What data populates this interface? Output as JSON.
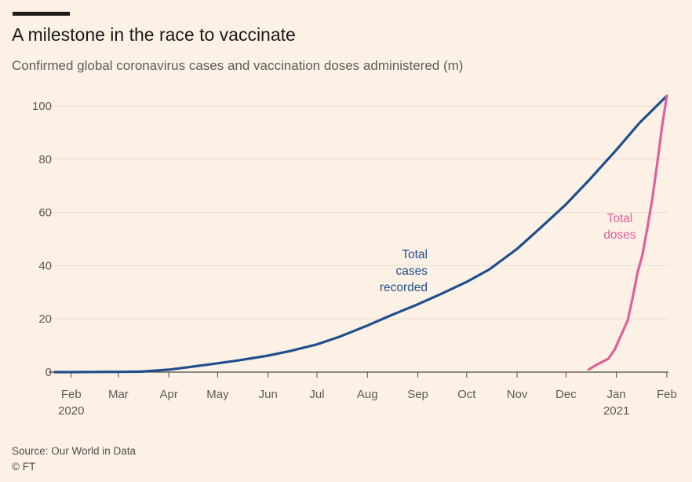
{
  "title": "A milestone in the race to vaccinate",
  "subtitle": "Confirmed global coronavirus cases and vaccination doses administered (m)",
  "source": "Source: Our World in Data",
  "copyright": "© FT",
  "colors": {
    "background": "#fdf1e5",
    "cases": "#1f4f8e",
    "doses": "#e0609b",
    "grid": "#e9dccf"
  },
  "chart_data": {
    "type": "line",
    "title": "A milestone in the race to vaccinate",
    "subtitle": "Confirmed global coronavirus cases and vaccination doses administered (m)",
    "ylim": [
      0,
      100
    ],
    "y_ticks": [
      "0",
      "20",
      "40",
      "60",
      "80",
      "100"
    ],
    "x_ticks": [
      {
        "date": "2020-02-01",
        "label": "Feb",
        "sublabel": "2020"
      },
      {
        "date": "2020-03-01",
        "label": "Mar",
        "sublabel": ""
      },
      {
        "date": "2020-04-01",
        "label": "Apr",
        "sublabel": ""
      },
      {
        "date": "2020-05-01",
        "label": "May",
        "sublabel": ""
      },
      {
        "date": "2020-06-01",
        "label": "Jun",
        "sublabel": ""
      },
      {
        "date": "2020-07-01",
        "label": "Jul",
        "sublabel": ""
      },
      {
        "date": "2020-08-01",
        "label": "Aug",
        "sublabel": ""
      },
      {
        "date": "2020-09-01",
        "label": "Sep",
        "sublabel": ""
      },
      {
        "date": "2020-10-01",
        "label": "Oct",
        "sublabel": ""
      },
      {
        "date": "2020-11-01",
        "label": "Nov",
        "sublabel": ""
      },
      {
        "date": "2020-12-01",
        "label": "Dec",
        "sublabel": ""
      },
      {
        "date": "2021-01-01",
        "label": "Jan",
        "sublabel": "2021"
      },
      {
        "date": "2021-02-01",
        "label": "Feb",
        "sublabel": ""
      }
    ],
    "x_start": "2020-01-22",
    "x_end": "2021-02-02",
    "grid": true,
    "series": [
      {
        "name": "Total cases recorded",
        "label_lines": [
          "Total",
          "cases",
          "recorded"
        ],
        "color": "#1f4f8e",
        "points": [
          [
            "2020-01-22",
            0.0
          ],
          [
            "2020-02-01",
            0.01
          ],
          [
            "2020-02-15",
            0.07
          ],
          [
            "2020-03-01",
            0.09
          ],
          [
            "2020-03-15",
            0.17
          ],
          [
            "2020-04-01",
            0.9
          ],
          [
            "2020-04-15",
            2.0
          ],
          [
            "2020-05-01",
            3.3
          ],
          [
            "2020-05-15",
            4.5
          ],
          [
            "2020-06-01",
            6.2
          ],
          [
            "2020-06-15",
            8.0
          ],
          [
            "2020-07-01",
            10.4
          ],
          [
            "2020-07-15",
            13.3
          ],
          [
            "2020-08-01",
            17.5
          ],
          [
            "2020-08-15",
            21.2
          ],
          [
            "2020-09-01",
            25.5
          ],
          [
            "2020-09-15",
            29.3
          ],
          [
            "2020-10-01",
            33.9
          ],
          [
            "2020-10-15",
            38.6
          ],
          [
            "2020-11-01",
            46.3
          ],
          [
            "2020-11-15",
            54.0
          ],
          [
            "2020-12-01",
            63.0
          ],
          [
            "2020-12-15",
            72.0
          ],
          [
            "2021-01-01",
            83.5
          ],
          [
            "2021-01-15",
            93.5
          ],
          [
            "2021-02-01",
            103.8
          ]
        ]
      },
      {
        "name": "Total doses",
        "label_lines": [
          "Total",
          "doses"
        ],
        "color": "#e0609b",
        "points": [
          [
            "2020-12-15",
            1.0
          ],
          [
            "2020-12-20",
            2.8
          ],
          [
            "2020-12-27",
            5.0
          ],
          [
            "2020-12-31",
            8.5
          ],
          [
            "2021-01-04",
            14.0
          ],
          [
            "2021-01-08",
            19.5
          ],
          [
            "2021-01-11",
            28.0
          ],
          [
            "2021-01-14",
            37.5
          ],
          [
            "2021-01-17",
            44.0
          ],
          [
            "2021-01-20",
            54.0
          ],
          [
            "2021-01-23",
            65.0
          ],
          [
            "2021-01-26",
            78.0
          ],
          [
            "2021-01-29",
            92.0
          ],
          [
            "2021-02-01",
            103.8
          ]
        ]
      }
    ]
  }
}
